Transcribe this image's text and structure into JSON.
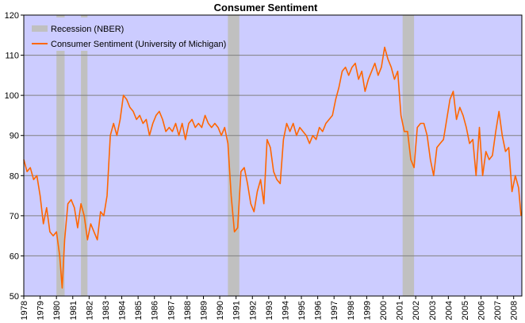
{
  "chart_data": {
    "type": "line",
    "title": "Consumer Sentiment",
    "xlabel": "",
    "ylabel": "",
    "xlim": [
      1978.0,
      2008.5
    ],
    "ylim": [
      50,
      120
    ],
    "y_ticks": [
      50,
      60,
      70,
      80,
      90,
      100,
      110,
      120
    ],
    "x_ticks": [
      "1978",
      "1979",
      "1980",
      "1981",
      "1982",
      "1983",
      "1984",
      "1985",
      "1986",
      "1987",
      "1988",
      "1989",
      "1990",
      "1991",
      "1992",
      "1993",
      "1994",
      "1995",
      "1996",
      "1997",
      "1998",
      "1999",
      "2000",
      "2001",
      "2002",
      "2003",
      "2004",
      "2005",
      "2006",
      "2007",
      "2008"
    ],
    "grid": "horizontal",
    "legend_position": "top-left",
    "colors": {
      "plot_background": "#ccccff",
      "recession": "#c0c0c0",
      "line": "#ff6600",
      "grid": "#808080"
    },
    "recessions": {
      "name": "Recession (NBER)",
      "periods": [
        [
          1980.0,
          1980.5
        ],
        [
          1981.5,
          1981.9
        ],
        [
          1990.5,
          1991.2
        ],
        [
          2001.2,
          2001.9
        ]
      ]
    },
    "series": [
      {
        "name": "Consumer Sentiment (University of Michigan)",
        "x": [
          1978.0,
          1978.2,
          1978.4,
          1978.6,
          1978.8,
          1979.0,
          1979.2,
          1979.4,
          1979.6,
          1979.8,
          1980.0,
          1980.2,
          1980.35,
          1980.5,
          1980.7,
          1980.9,
          1981.1,
          1981.3,
          1981.5,
          1981.7,
          1981.9,
          1982.1,
          1982.3,
          1982.5,
          1982.7,
          1982.9,
          1983.1,
          1983.3,
          1983.5,
          1983.7,
          1983.9,
          1984.1,
          1984.3,
          1984.5,
          1984.7,
          1984.9,
          1985.1,
          1985.3,
          1985.5,
          1985.7,
          1985.9,
          1986.1,
          1986.3,
          1986.5,
          1986.7,
          1986.9,
          1987.1,
          1987.3,
          1987.5,
          1987.7,
          1987.9,
          1988.1,
          1988.3,
          1988.5,
          1988.7,
          1988.9,
          1989.1,
          1989.3,
          1989.5,
          1989.7,
          1989.9,
          1990.1,
          1990.3,
          1990.5,
          1990.7,
          1990.9,
          1991.1,
          1991.3,
          1991.5,
          1991.7,
          1991.9,
          1992.1,
          1992.3,
          1992.5,
          1992.7,
          1992.9,
          1993.1,
          1993.3,
          1993.5,
          1993.7,
          1993.9,
          1994.1,
          1994.3,
          1994.5,
          1994.7,
          1994.9,
          1995.1,
          1995.3,
          1995.5,
          1995.7,
          1995.9,
          1996.1,
          1996.3,
          1996.5,
          1996.7,
          1996.9,
          1997.1,
          1997.3,
          1997.5,
          1997.7,
          1997.9,
          1998.1,
          1998.3,
          1998.5,
          1998.7,
          1998.9,
          1999.1,
          1999.3,
          1999.5,
          1999.7,
          1999.9,
          2000.1,
          2000.3,
          2000.5,
          2000.7,
          2000.9,
          2001.1,
          2001.3,
          2001.5,
          2001.7,
          2001.9,
          2002.1,
          2002.3,
          2002.5,
          2002.7,
          2002.9,
          2003.1,
          2003.3,
          2003.5,
          2003.7,
          2003.9,
          2004.1,
          2004.3,
          2004.5,
          2004.7,
          2004.9,
          2005.1,
          2005.3,
          2005.5,
          2005.7,
          2005.9,
          2006.1,
          2006.3,
          2006.5,
          2006.7,
          2006.9,
          2007.1,
          2007.3,
          2007.5,
          2007.7,
          2007.9,
          2008.1,
          2008.3,
          2008.45
        ],
        "y": [
          84,
          81,
          82,
          79,
          80,
          75,
          68,
          72,
          66,
          65,
          66,
          60,
          52,
          64,
          73,
          74,
          72,
          67,
          73,
          70,
          64,
          68,
          66,
          64,
          71,
          70,
          75,
          90,
          93,
          90,
          94,
          100,
          99,
          97,
          96,
          94,
          95,
          93,
          94,
          90,
          93,
          95,
          96,
          94,
          91,
          92,
          91,
          93,
          90,
          93,
          89,
          93,
          94,
          92,
          93,
          92,
          95,
          93,
          92,
          93,
          92,
          90,
          92,
          88,
          75,
          66,
          67,
          81,
          82,
          78,
          73,
          71,
          76,
          79,
          73,
          89,
          87,
          81,
          79,
          78,
          89,
          93,
          91,
          93,
          90,
          92,
          91,
          90,
          88,
          90,
          89,
          92,
          91,
          93,
          94,
          95,
          99,
          102,
          106,
          107,
          105,
          107,
          108,
          104,
          106,
          101,
          104,
          106,
          108,
          105,
          107,
          112,
          109,
          107,
          104,
          106,
          95,
          91,
          91,
          84,
          82,
          92,
          93,
          93,
          90,
          84,
          80,
          87,
          88,
          89,
          94,
          99,
          101,
          94,
          97,
          95,
          92,
          88,
          89,
          80,
          92,
          80,
          86,
          84,
          85,
          91,
          96,
          90,
          86,
          87,
          76,
          80,
          77,
          70
        ]
      }
    ]
  }
}
